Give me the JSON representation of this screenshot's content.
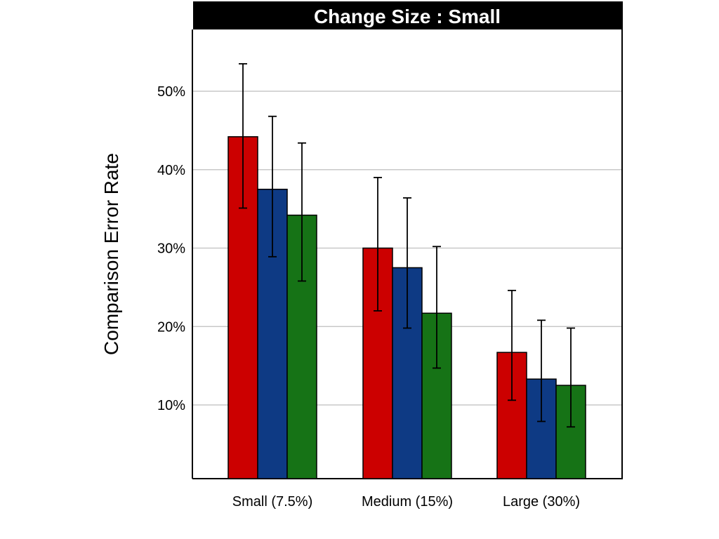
{
  "chart_data": {
    "type": "bar",
    "title": "Change Size : Small",
    "xlabel": "",
    "ylabel": "Comparison Error Rate",
    "ylim": [
      0,
      57
    ],
    "yticks": [
      10,
      20,
      30,
      40,
      50
    ],
    "ytick_labels": [
      "10%",
      "20%",
      "30%",
      "40%",
      "50%"
    ],
    "categories": [
      "Small (7.5%)",
      "Medium (15%)",
      "Large (30%)"
    ],
    "series": [
      {
        "color": "#cc0000",
        "values": [
          44.2,
          30.0,
          16.7
        ],
        "err_low": [
          35.1,
          22.0,
          10.6
        ],
        "err_high": [
          53.5,
          39.0,
          24.6
        ]
      },
      {
        "color": "#0e3a84",
        "values": [
          37.5,
          27.5,
          13.3
        ],
        "err_low": [
          28.9,
          19.8,
          7.9
        ],
        "err_high": [
          46.8,
          36.4,
          20.8
        ]
      },
      {
        "color": "#167316",
        "values": [
          34.2,
          21.7,
          12.5
        ],
        "err_low": [
          25.8,
          14.7,
          7.2
        ],
        "err_high": [
          43.4,
          30.2,
          19.8
        ]
      }
    ],
    "grid": true,
    "legend": "none",
    "title_bar_color": "#000000"
  }
}
